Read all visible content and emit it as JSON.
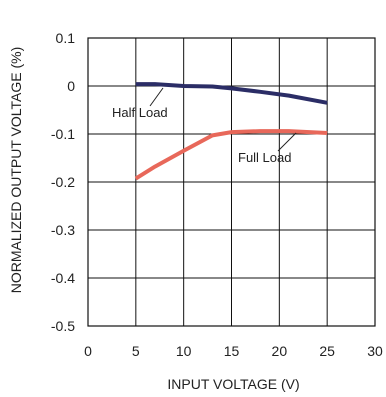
{
  "chart_data": {
    "type": "line",
    "xlabel": "INPUT VOLTAGE (V)",
    "ylabel": "NORMALIZED OUTPUT VOLTAGE (%)",
    "xlim": [
      0,
      30
    ],
    "ylim": [
      -0.5,
      0.1
    ],
    "xticks": [
      0,
      5,
      10,
      15,
      20,
      25,
      30
    ],
    "yticks": [
      0.1,
      0,
      -0.1,
      -0.2,
      -0.3,
      -0.4,
      -0.5
    ],
    "xtick_labels": [
      "0",
      "5",
      "10",
      "15",
      "20",
      "25",
      "30"
    ],
    "ytick_labels": [
      "0.1",
      "0",
      "-0.1",
      "-0.2",
      "-0.3",
      "-0.4",
      "-0.5"
    ],
    "grid": true,
    "series": [
      {
        "name": "Half Load",
        "color": "#2b2d66",
        "x": [
          5,
          7,
          10,
          13,
          15,
          18,
          21,
          25
        ],
        "y": [
          0.004,
          0.004,
          0.0,
          -0.001,
          -0.005,
          -0.012,
          -0.02,
          -0.035
        ]
      },
      {
        "name": "Full Load",
        "color": "#e8685a",
        "x": [
          5,
          7,
          10,
          13,
          15,
          18,
          21,
          25
        ],
        "y": [
          -0.193,
          -0.168,
          -0.135,
          -0.103,
          -0.096,
          -0.094,
          -0.094,
          -0.098
        ]
      }
    ],
    "annotations": [
      {
        "text": "Half Load",
        "series": "Half Load"
      },
      {
        "text": "Full Load",
        "series": "Full Load"
      }
    ]
  }
}
